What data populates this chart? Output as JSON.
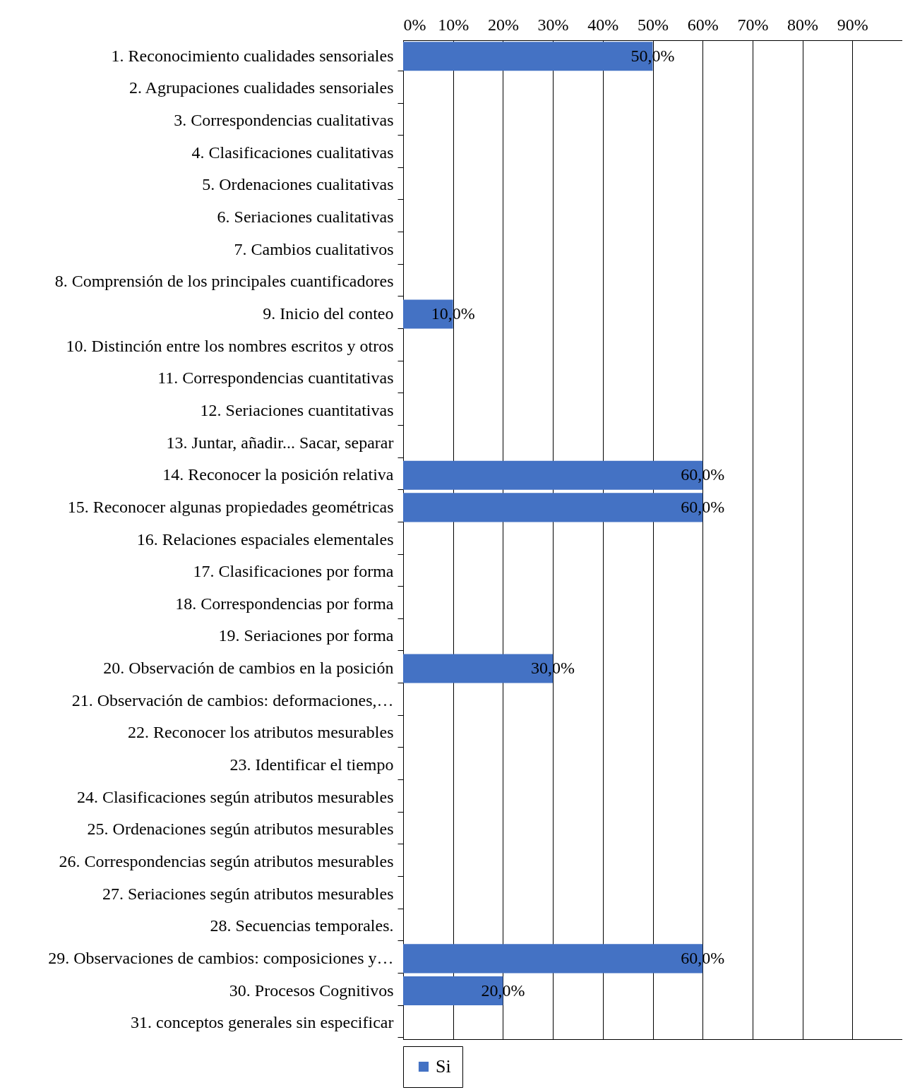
{
  "chart_data": {
    "type": "bar",
    "orientation": "horizontal",
    "categories": [
      "1. Reconocimiento cualidades sensoriales",
      "2. Agrupaciones cualidades sensoriales",
      "3. Correspondencias cualitativas",
      "4. Clasificaciones cualitativas",
      "5. Ordenaciones cualitativas",
      "6. Seriaciones cualitativas",
      "7. Cambios cualitativos",
      "8. Comprensión de los principales cuantificadores",
      "9. Inicio del conteo",
      "10. Distinción entre los nombres escritos y otros",
      "11. Correspondencias cuantitativas",
      "12. Seriaciones cuantitativas",
      "13. Juntar, añadir... Sacar, separar",
      "14. Reconocer la posición relativa",
      "15. Reconocer algunas propiedades geométricas",
      "16. Relaciones espaciales elementales",
      "17. Clasificaciones por forma",
      "18. Correspondencias por forma",
      "19. Seriaciones por forma",
      "20. Observación de cambios en la posición",
      "21. Observación de cambios: deformaciones,…",
      "22. Reconocer los atributos mesurables",
      "23. Identificar el tiempo",
      "24. Clasificaciones según atributos mesurables",
      "25. Ordenaciones según atributos mesurables",
      "26. Correspondencias según atributos mesurables",
      "27. Seriaciones según atributos mesurables",
      "28. Secuencias temporales.",
      "29. Observaciones de cambios: composiciones y…",
      "30. Procesos Cognitivos",
      "31. conceptos generales sin especificar"
    ],
    "series": [
      {
        "name": "Si",
        "color": "#4472c4",
        "values": [
          50,
          null,
          null,
          null,
          null,
          null,
          null,
          null,
          10,
          null,
          null,
          null,
          null,
          60,
          60,
          null,
          null,
          null,
          null,
          30,
          null,
          null,
          null,
          null,
          null,
          null,
          null,
          null,
          60,
          20,
          null
        ],
        "value_labels": [
          "50,0%",
          null,
          null,
          null,
          null,
          null,
          null,
          null,
          "10,0%",
          null,
          null,
          null,
          null,
          "60,0%",
          "60,0%",
          null,
          null,
          null,
          null,
          "30,0%",
          null,
          null,
          null,
          null,
          null,
          null,
          null,
          null,
          "60,0%",
          "20,0%",
          null
        ]
      }
    ],
    "xlim": [
      0,
      100
    ],
    "xticks": [
      {
        "value": 0,
        "label": "0%"
      },
      {
        "value": 10,
        "label": "10%"
      },
      {
        "value": 20,
        "label": "20%"
      },
      {
        "value": 30,
        "label": "30%"
      },
      {
        "value": 40,
        "label": "40%"
      },
      {
        "value": 50,
        "label": "50%"
      },
      {
        "value": 60,
        "label": "60%"
      },
      {
        "value": 70,
        "label": "70%"
      },
      {
        "value": 80,
        "label": "80%"
      },
      {
        "value": 90,
        "label": "90%"
      }
    ],
    "grid": "x",
    "legend": "bottom"
  }
}
